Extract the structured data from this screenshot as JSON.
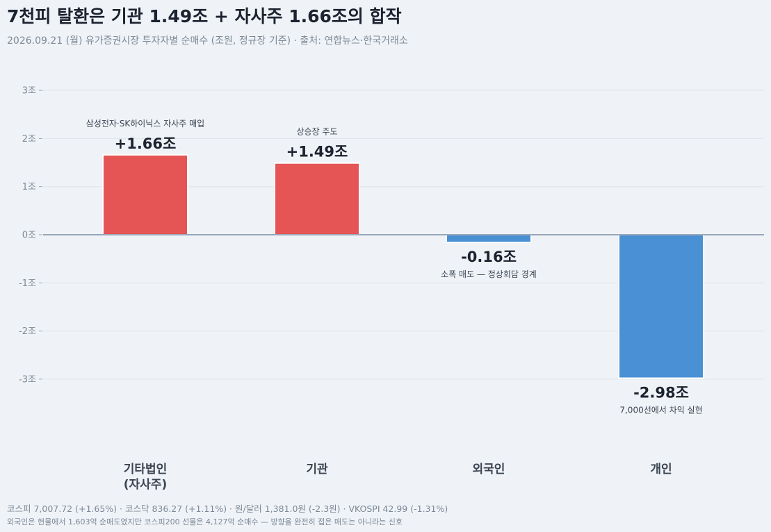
{
  "header": {
    "title": "7천피 탈환은 기관 1.49조 + 자사주 1.66조의 합작",
    "subtitle": "2026.09.21 (월) 유가증권시장 투자자별 순매수 (조원, 정규장 기준)  ·  출처: 연합뉴스·한국거래소"
  },
  "footer": {
    "line1": "코스피 7,007.72 (+1.65%) · 코스닥 836.27 (+1.11%) · 원/달러 1,381.0원 (-2.3원) · VKOSPI 42.99 (-1.31%)",
    "line2": "외국인은 현물에서 1,603억 순매도였지만 코스피200 선물은 4,127억 순매수 — 방향을 완전히 접은 매도는 아니라는 신호"
  },
  "chart_data": {
    "type": "bar",
    "title": "7천피 탈환은 기관 1.49조 + 자사주 1.66조의 합작",
    "ylabel": "",
    "xlabel": "",
    "ylim": [
      -4.4,
      3.1
    ],
    "yticks": [
      3,
      2,
      1,
      0,
      -1,
      -2,
      -3
    ],
    "ytick_labels": [
      "3조",
      "2조",
      "1조",
      "0조",
      "-1조",
      "-2조",
      "-3조"
    ],
    "grid": true,
    "colors": {
      "positive": "#e55555",
      "negative": "#4a90d4",
      "zero_line": "#7a8ca3",
      "grid": "#dfe4ea"
    },
    "categories": [
      {
        "label_lines": [
          "기타법인",
          "(자사주)"
        ],
        "value": 1.66,
        "value_label": "+1.66조",
        "note": "삼성전자·SK하이닉스 자사주 매입"
      },
      {
        "label_lines": [
          "기관"
        ],
        "value": 1.49,
        "value_label": "+1.49조",
        "note": "상승장 주도"
      },
      {
        "label_lines": [
          "외국인"
        ],
        "value": -0.16,
        "value_label": "-0.16조",
        "note": "소폭 매도 — 정상회담 경계"
      },
      {
        "label_lines": [
          "개인"
        ],
        "value": -2.98,
        "value_label": "-2.98조",
        "note": "7,000선에서 차익 실현"
      }
    ]
  }
}
